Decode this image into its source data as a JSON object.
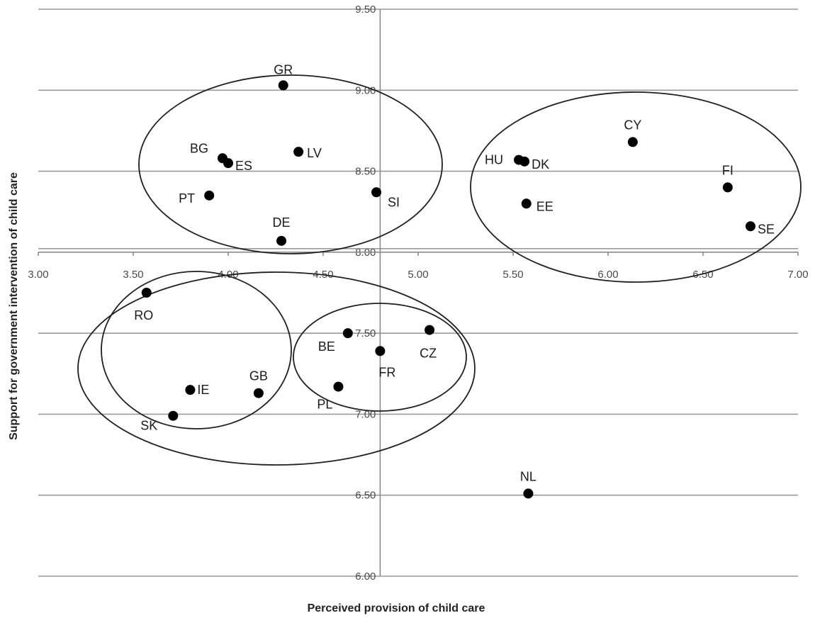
{
  "chart_data": {
    "type": "scatter",
    "xlabel": "Perceived provision of child care",
    "ylabel": "Support for government intervention of child care",
    "xlim": [
      3.0,
      7.0
    ],
    "ylim": [
      6.0,
      9.5
    ],
    "x_ticks": [
      "3.00",
      "3.50",
      "4.00",
      "4.50",
      "5.00",
      "5.50",
      "6.00",
      "6.50",
      "7.00"
    ],
    "y_ticks": [
      "6.00",
      "6.50",
      "7.00",
      "7.50",
      "8.00",
      "8.50",
      "9.00",
      "9.50"
    ],
    "axis_cross": {
      "x": 4.8,
      "y": 8.0
    },
    "grid": true,
    "points": [
      {
        "label": "GR",
        "x": 4.29,
        "y": 9.03
      },
      {
        "label": "BG",
        "x": 3.97,
        "y": 8.58
      },
      {
        "label": "ES",
        "x": 4.0,
        "y": 8.55
      },
      {
        "label": "LV",
        "x": 4.37,
        "y": 8.62
      },
      {
        "label": "PT",
        "x": 3.9,
        "y": 8.35
      },
      {
        "label": "SI",
        "x": 4.78,
        "y": 8.37
      },
      {
        "label": "DE",
        "x": 4.28,
        "y": 8.07
      },
      {
        "label": "HU",
        "x": 5.53,
        "y": 8.57
      },
      {
        "label": "DK",
        "x": 5.56,
        "y": 8.56
      },
      {
        "label": "EE",
        "x": 5.57,
        "y": 8.3
      },
      {
        "label": "CY",
        "x": 6.13,
        "y": 8.68
      },
      {
        "label": "FI",
        "x": 6.63,
        "y": 8.4
      },
      {
        "label": "SE",
        "x": 6.75,
        "y": 8.16
      },
      {
        "label": "RO",
        "x": 3.57,
        "y": 7.75
      },
      {
        "label": "IE",
        "x": 3.8,
        "y": 7.15
      },
      {
        "label": "GB",
        "x": 4.16,
        "y": 7.13
      },
      {
        "label": "SK",
        "x": 3.71,
        "y": 6.99
      },
      {
        "label": "BE",
        "x": 4.63,
        "y": 7.5
      },
      {
        "label": "FR",
        "x": 4.8,
        "y": 7.39
      },
      {
        "label": "CZ",
        "x": 5.06,
        "y": 7.52
      },
      {
        "label": "PL",
        "x": 4.58,
        "y": 7.17
      },
      {
        "label": "NL",
        "x": 5.58,
        "y": 6.51
      }
    ]
  }
}
